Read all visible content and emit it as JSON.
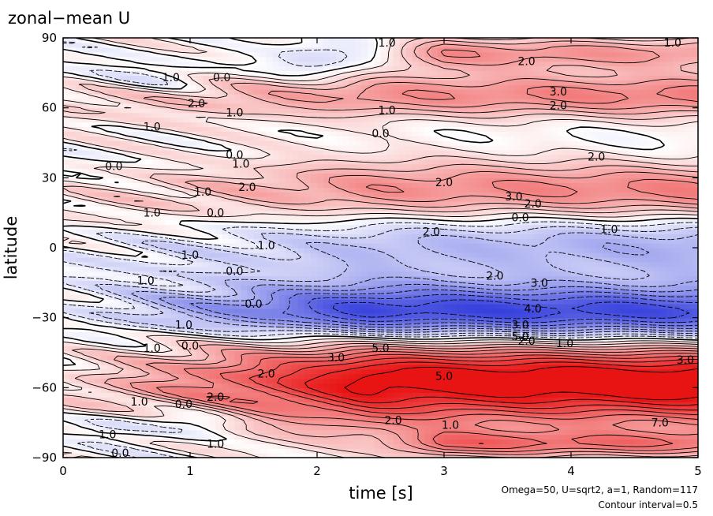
{
  "chart_data": {
    "type": "heatmap",
    "title": "zonal−mean U",
    "xlabel": "time [s]",
    "ylabel": "latitude",
    "xlim": [
      0,
      5
    ],
    "ylim": [
      -90,
      90
    ],
    "x_ticks": [
      "0",
      "1",
      "2",
      "3",
      "4",
      "5"
    ],
    "y_ticks": [
      "−90",
      "−60",
      "−30",
      "0",
      "30",
      "60",
      "90"
    ],
    "x_tick_values": [
      0,
      1,
      2,
      3,
      4,
      5
    ],
    "y_tick_values": [
      -90,
      -60,
      -30,
      0,
      30,
      60,
      90
    ],
    "annotation_params": "Omega=50, U=sqrt2, a=1, Random=117",
    "annotation_interval": "Contour interval=0.5",
    "contour_interval": 0.5,
    "colormap": {
      "negative": "#1f2ad8",
      "zero": "#ffffff",
      "positive": "#e81414"
    },
    "contour_labels": [
      {
        "t": 0.85,
        "lat": 73,
        "text": "1.0"
      },
      {
        "t": 1.25,
        "lat": 73,
        "text": "0.0"
      },
      {
        "t": 1.05,
        "lat": 62,
        "text": "2.0"
      },
      {
        "t": 1.35,
        "lat": 58,
        "text": "1.0"
      },
      {
        "t": 0.7,
        "lat": 52,
        "text": "1.0"
      },
      {
        "t": 1.35,
        "lat": 40,
        "text": "0.0"
      },
      {
        "t": 1.4,
        "lat": 36,
        "text": "1.0"
      },
      {
        "t": 0.4,
        "lat": 35,
        "text": "0.0"
      },
      {
        "t": 2.5,
        "lat": 49,
        "text": "0.0"
      },
      {
        "t": 2.55,
        "lat": 59,
        "text": "1.0"
      },
      {
        "t": 2.55,
        "lat": 88,
        "text": "1.0"
      },
      {
        "t": 3.65,
        "lat": 80,
        "text": "2.0"
      },
      {
        "t": 3.9,
        "lat": 67,
        "text": "3.0"
      },
      {
        "t": 3.9,
        "lat": 61,
        "text": "2.0"
      },
      {
        "t": 4.8,
        "lat": 88,
        "text": "1.0"
      },
      {
        "t": 4.2,
        "lat": 39,
        "text": "2.0"
      },
      {
        "t": 1.1,
        "lat": 24,
        "text": "1.0"
      },
      {
        "t": 1.45,
        "lat": 26,
        "text": "2.0"
      },
      {
        "t": 0.7,
        "lat": 15,
        "text": "1.0"
      },
      {
        "t": 1.2,
        "lat": 15,
        "text": "0.0"
      },
      {
        "t": 3.0,
        "lat": 28,
        "text": "2.0"
      },
      {
        "t": 3.55,
        "lat": 22,
        "text": "3.0"
      },
      {
        "t": 3.7,
        "lat": 19,
        "text": "2.0"
      },
      {
        "t": 3.6,
        "lat": 13,
        "text": "0.0"
      },
      {
        "t": 2.9,
        "lat": 7,
        "text": "2.0"
      },
      {
        "t": 4.3,
        "lat": 8,
        "text": "1.0"
      },
      {
        "t": 1.0,
        "lat": -3,
        "text": "1.0"
      },
      {
        "t": 1.6,
        "lat": 1,
        "text": "1.0"
      },
      {
        "t": 0.65,
        "lat": -14,
        "text": "1.0"
      },
      {
        "t": 1.35,
        "lat": -10,
        "text": "0.0"
      },
      {
        "t": 1.5,
        "lat": -24,
        "text": "0.0"
      },
      {
        "t": 3.4,
        "lat": -12,
        "text": "2.0"
      },
      {
        "t": 3.75,
        "lat": -15,
        "text": "3.0"
      },
      {
        "t": 3.7,
        "lat": -26,
        "text": "4.0"
      },
      {
        "t": 3.6,
        "lat": -33,
        "text": "3.0"
      },
      {
        "t": 3.6,
        "lat": -38,
        "text": "5.0"
      },
      {
        "t": 3.65,
        "lat": -40,
        "text": "2.0"
      },
      {
        "t": 3.95,
        "lat": -41,
        "text": "1.0"
      },
      {
        "t": 0.95,
        "lat": -33,
        "text": "1.0"
      },
      {
        "t": 0.7,
        "lat": -43,
        "text": "1.0"
      },
      {
        "t": 1.0,
        "lat": -42,
        "text": "0.0"
      },
      {
        "t": 2.15,
        "lat": -47,
        "text": "3.0"
      },
      {
        "t": 2.5,
        "lat": -43,
        "text": "5.0"
      },
      {
        "t": 1.6,
        "lat": -54,
        "text": "2.0"
      },
      {
        "t": 3.0,
        "lat": -55,
        "text": "5.0"
      },
      {
        "t": 1.2,
        "lat": -64,
        "text": "2.0"
      },
      {
        "t": 0.6,
        "lat": -66,
        "text": "1.0"
      },
      {
        "t": 0.95,
        "lat": -67,
        "text": "0.0"
      },
      {
        "t": 2.6,
        "lat": -74,
        "text": "2.0"
      },
      {
        "t": 3.05,
        "lat": -76,
        "text": "1.0"
      },
      {
        "t": 4.9,
        "lat": -48,
        "text": "3.0"
      },
      {
        "t": 4.7,
        "lat": -75,
        "text": "7.0"
      },
      {
        "t": 0.35,
        "lat": -80,
        "text": "1.0"
      },
      {
        "t": 1.2,
        "lat": -84,
        "text": "1.0"
      },
      {
        "t": 0.45,
        "lat": -88,
        "text": "0.0"
      }
    ]
  }
}
